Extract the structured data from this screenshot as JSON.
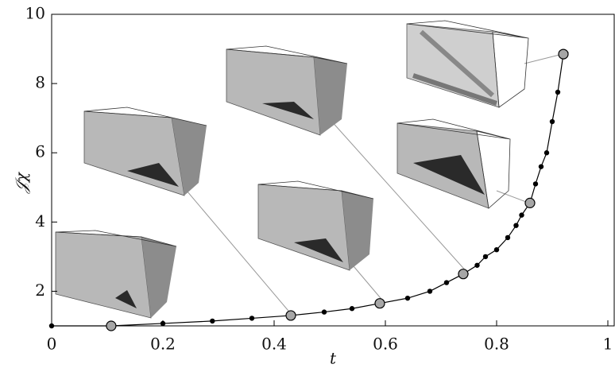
{
  "chart_data": {
    "type": "line",
    "x_label": "t",
    "y_label": "𝒥χ",
    "x": [
      0,
      0.107,
      0.2,
      0.289,
      0.36,
      0.43,
      0.49,
      0.54,
      0.59,
      0.64,
      0.68,
      0.71,
      0.74,
      0.765,
      0.78,
      0.8,
      0.82,
      0.835,
      0.845,
      0.86,
      0.87,
      0.88,
      0.89,
      0.9,
      0.91,
      0.92
    ],
    "values": [
      1.0,
      1.0,
      1.07,
      1.14,
      1.22,
      1.3,
      1.4,
      1.5,
      1.65,
      1.8,
      2.0,
      2.25,
      2.5,
      2.75,
      3.0,
      3.2,
      3.55,
      3.9,
      4.2,
      4.55,
      5.1,
      5.6,
      6.0,
      6.9,
      7.75,
      8.85
    ],
    "highlight": [
      false,
      true,
      false,
      false,
      false,
      true,
      false,
      false,
      true,
      false,
      false,
      false,
      true,
      false,
      false,
      false,
      false,
      false,
      false,
      true,
      false,
      false,
      false,
      false,
      false,
      true
    ],
    "color": "#000000",
    "highlight_color": "#a6a6a6",
    "xlim": [
      0,
      1
    ],
    "xticks": [
      0,
      0.2,
      0.4,
      0.6,
      0.8,
      1
    ],
    "ylim": [
      1,
      10
    ],
    "yticks": [
      2,
      4,
      6,
      8,
      10
    ]
  }
}
